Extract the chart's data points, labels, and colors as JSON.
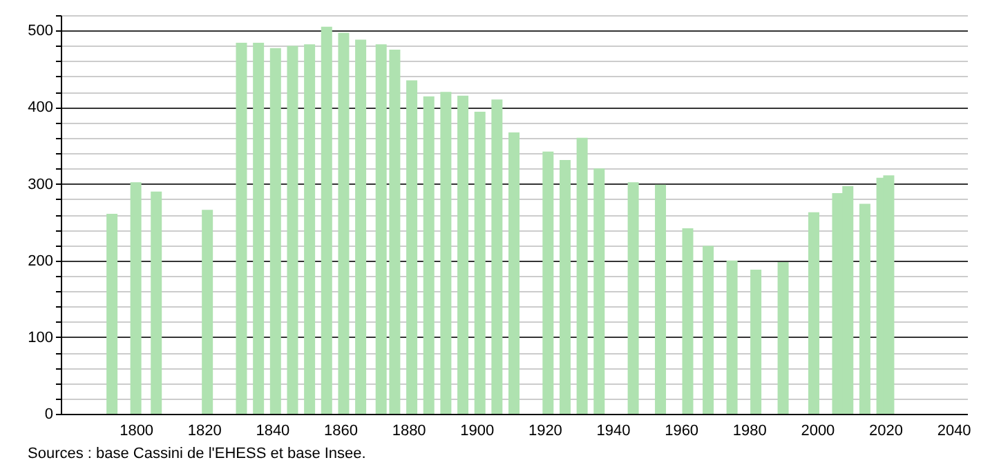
{
  "chart_data": {
    "type": "bar",
    "x": [
      1793,
      1800,
      1806,
      1821,
      1831,
      1836,
      1841,
      1846,
      1851,
      1856,
      1861,
      1866,
      1872,
      1876,
      1881,
      1886,
      1891,
      1896,
      1901,
      1906,
      1911,
      1921,
      1926,
      1931,
      1936,
      1946,
      1954,
      1962,
      1968,
      1975,
      1982,
      1990,
      1999,
      2006,
      2009,
      2014,
      2019,
      2021
    ],
    "series": [
      {
        "color": "#afe2b0",
        "values": [
          261,
          302,
          290,
          266,
          484,
          484,
          477,
          480,
          482,
          505,
          497,
          488,
          482,
          475,
          435,
          414,
          420,
          415,
          394,
          410,
          367,
          342,
          331,
          360,
          320,
          302,
          299,
          242,
          219,
          200,
          188,
          198,
          263,
          288,
          297,
          274,
          308,
          311
        ]
      }
    ],
    "xlim": [
      1780,
      2042
    ],
    "xticks": [
      1800,
      1820,
      1840,
      1860,
      1880,
      1900,
      1920,
      1940,
      1960,
      1980,
      2000,
      2020,
      2040
    ],
    "ylim": [
      0,
      520
    ],
    "yticks": [
      0,
      {
        "value": 20,
        "label": null
      },
      {
        "value": 40,
        "label": null
      },
      {
        "value": 60,
        "label": null
      },
      {
        "value": 80,
        "label": null
      },
      100,
      {
        "value": 120,
        "label": null
      },
      {
        "value": 140,
        "label": null
      },
      {
        "value": 160,
        "label": null
      },
      {
        "value": 180,
        "label": null
      },
      200,
      {
        "value": 220,
        "label": null
      },
      {
        "value": 240,
        "label": null
      },
      {
        "value": 260,
        "label": null
      },
      {
        "value": 280,
        "label": null
      },
      300,
      {
        "value": 320,
        "label": null
      },
      {
        "value": 340,
        "label": null
      },
      {
        "value": 360,
        "label": null
      },
      {
        "value": 380,
        "label": null
      },
      400,
      {
        "value": 420,
        "label": null
      },
      {
        "value": 440,
        "label": null
      },
      {
        "value": 460,
        "label": null
      },
      {
        "value": 480,
        "label": null
      },
      500,
      {
        "value": 520,
        "label": null
      }
    ],
    "grid": "y",
    "annotations": [
      "Sources : base Cassini de l'EHESS et base Insee."
    ]
  }
}
